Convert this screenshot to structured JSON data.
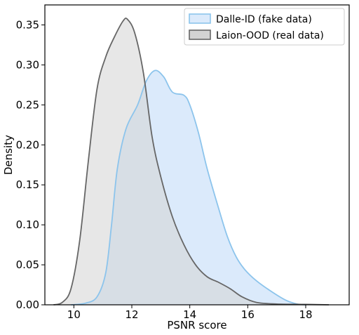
{
  "chart_data": {
    "type": "area",
    "title": "",
    "xlabel": "PSNR score",
    "ylabel": "Density",
    "xlim": [
      9,
      19.5
    ],
    "ylim": [
      0,
      0.375
    ],
    "xticks": [
      10,
      12,
      14,
      16,
      18
    ],
    "yticks": [
      0.0,
      0.05,
      0.1,
      0.15,
      0.2,
      0.25,
      0.3,
      0.35
    ],
    "xtick_labels": [
      "10",
      "12",
      "14",
      "16",
      "18"
    ],
    "ytick_labels": [
      "0.00",
      "0.05",
      "0.10",
      "0.15",
      "0.20",
      "0.25",
      "0.30",
      "0.35"
    ],
    "grid": false,
    "legend_position": "top-right",
    "series": [
      {
        "name": "Dalle-ID (fake data)",
        "fill": "#dbeafb",
        "stroke": "#8cc4ec",
        "points": [
          [
            9.9,
            0.0
          ],
          [
            10.4,
            0.002
          ],
          [
            10.8,
            0.01
          ],
          [
            11.1,
            0.04
          ],
          [
            11.3,
            0.1
          ],
          [
            11.5,
            0.17
          ],
          [
            11.8,
            0.22
          ],
          [
            12.2,
            0.25
          ],
          [
            12.5,
            0.28
          ],
          [
            12.8,
            0.293
          ],
          [
            13.1,
            0.285
          ],
          [
            13.4,
            0.266
          ],
          [
            13.8,
            0.262
          ],
          [
            14.0,
            0.25
          ],
          [
            14.3,
            0.215
          ],
          [
            14.6,
            0.17
          ],
          [
            15.0,
            0.12
          ],
          [
            15.3,
            0.085
          ],
          [
            15.6,
            0.06
          ],
          [
            15.9,
            0.044
          ],
          [
            16.3,
            0.03
          ],
          [
            16.8,
            0.017
          ],
          [
            17.3,
            0.006
          ],
          [
            17.7,
            0.001
          ],
          [
            18.0,
            0.0
          ]
        ]
      },
      {
        "name": "Laion-OOD (real data)",
        "fill": "#d3d3d3",
        "stroke": "#666666",
        "points": [
          [
            9.3,
            0.0
          ],
          [
            9.6,
            0.003
          ],
          [
            9.9,
            0.02
          ],
          [
            10.2,
            0.08
          ],
          [
            10.5,
            0.18
          ],
          [
            10.8,
            0.27
          ],
          [
            11.1,
            0.31
          ],
          [
            11.4,
            0.335
          ],
          [
            11.7,
            0.355
          ],
          [
            11.85,
            0.357
          ],
          [
            12.1,
            0.34
          ],
          [
            12.4,
            0.29
          ],
          [
            12.7,
            0.21
          ],
          [
            13.0,
            0.16
          ],
          [
            13.4,
            0.11
          ],
          [
            13.8,
            0.075
          ],
          [
            14.2,
            0.05
          ],
          [
            14.6,
            0.035
          ],
          [
            15.0,
            0.028
          ],
          [
            15.4,
            0.02
          ],
          [
            15.8,
            0.01
          ],
          [
            16.3,
            0.003
          ],
          [
            17.0,
            0.001
          ],
          [
            18.0,
            0.0005
          ],
          [
            18.8,
            0.0
          ]
        ]
      }
    ]
  }
}
